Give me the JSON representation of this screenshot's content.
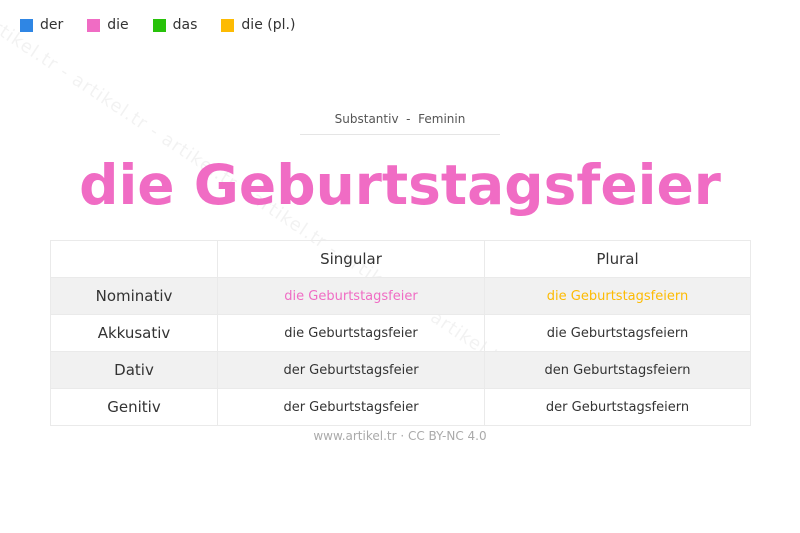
{
  "legend": [
    {
      "label": "der",
      "color": "#2f86e4"
    },
    {
      "label": "die",
      "color": "#f06cc4"
    },
    {
      "label": "das",
      "color": "#28c20a"
    },
    {
      "label": "die (pl.)",
      "color": "#fdbb03"
    }
  ],
  "watermark": "artikel.tr - artikel.tr - artikel.tr - artikel.tr - artikel.tr - artikel.tr",
  "subtitle": "Substantiv  -  Feminin",
  "title": "die Geburtstagsfeier",
  "title_color": "#f06cc4",
  "table": {
    "headers": [
      "",
      "Singular",
      "Plural"
    ],
    "rows": [
      {
        "case": "Nominativ",
        "singular": "die Geburtstagsfeier",
        "plural": "die Geburtstagsfeiern",
        "singular_color": "#f06cc4",
        "plural_color": "#fdbb03"
      },
      {
        "case": "Akkusativ",
        "singular": "die Geburtstagsfeier",
        "plural": "die Geburtstagsfeiern"
      },
      {
        "case": "Dativ",
        "singular": "der Geburtstagsfeier",
        "plural": "den Geburtstagsfeiern"
      },
      {
        "case": "Genitiv",
        "singular": "der Geburtstagsfeier",
        "plural": "der Geburtstagsfeiern"
      }
    ]
  },
  "footer": "www.artikel.tr · CC BY-NC 4.0"
}
